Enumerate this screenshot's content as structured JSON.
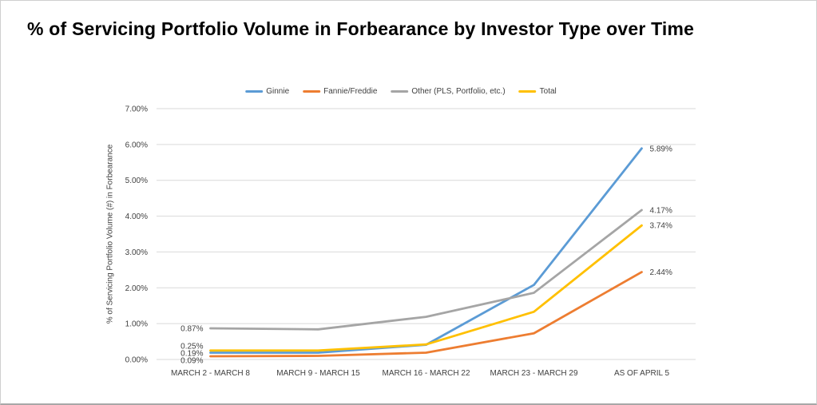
{
  "page": {
    "title": "% of Servicing Portfolio Volume in Forbearance by Investor Type over Time"
  },
  "chart_data": {
    "type": "line",
    "title": "% of Servicing Portfolio Volume in Forbearance by Investor Type over Time",
    "ylabel": "% of Servicing Portfolio Volume (#) in Forbearance",
    "xlabel": "",
    "ylim": [
      0,
      7
    ],
    "ytick_step": 1,
    "ytick_labels": [
      "0.00%",
      "1.00%",
      "2.00%",
      "3.00%",
      "4.00%",
      "5.00%",
      "6.00%",
      "7.00%"
    ],
    "grid": true,
    "legend_position": "top",
    "categories": [
      "MARCH 2 - MARCH 8",
      "MARCH 9 - MARCH 15",
      "MARCH 16 - MARCH 22",
      "MARCH 23 - MARCH 29",
      "AS OF APRIL 5"
    ],
    "series": [
      {
        "name": "Ginnie",
        "color": "#5B9BD5",
        "values": [
          0.19,
          0.19,
          0.41,
          2.08,
          5.89
        ],
        "first_label": "0.19%",
        "last_label": "5.89%"
      },
      {
        "name": "Fannie/Freddie",
        "color": "#ED7D31",
        "values": [
          0.09,
          0.1,
          0.19,
          0.73,
          2.44
        ],
        "first_label": "0.09%",
        "last_label": "2.44%"
      },
      {
        "name": "Other (PLS, Portfolio, etc.)",
        "color": "#A5A5A5",
        "values": [
          0.87,
          0.84,
          1.19,
          1.86,
          4.17
        ],
        "first_label": "0.87%",
        "last_label": "4.17%"
      },
      {
        "name": "Total",
        "color": "#FFC000",
        "values": [
          0.25,
          0.25,
          0.42,
          1.33,
          3.74
        ],
        "first_label": "0.25%",
        "last_label": "3.74%"
      }
    ],
    "colors": {
      "gridline": "#D9D9D9",
      "axis_text": "#404040",
      "data_label": "#404040",
      "title": "#000000"
    }
  }
}
